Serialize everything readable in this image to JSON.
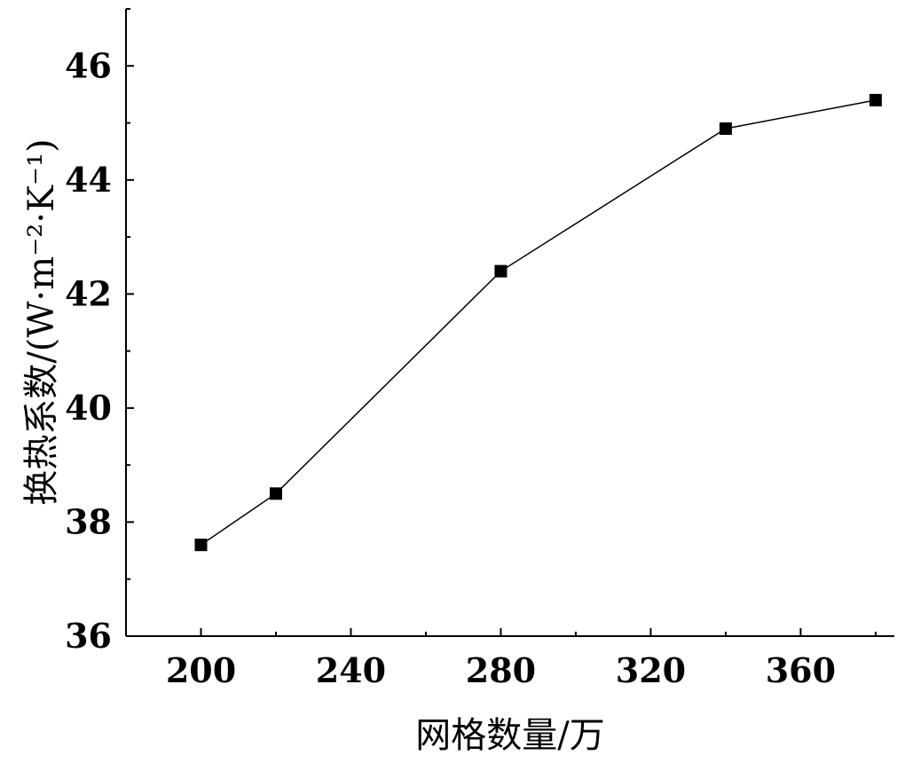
{
  "chart_data": {
    "type": "line",
    "title": "",
    "xlabel": "网格数量/万",
    "ylabel": "换热系数/(W·m⁻²·K⁻¹)",
    "xlim": [
      180,
      385
    ],
    "ylim": [
      36,
      47
    ],
    "x_ticks": [
      200,
      240,
      280,
      320,
      360
    ],
    "y_ticks": [
      36,
      38,
      40,
      42,
      44,
      46
    ],
    "grid": false,
    "legend": "none",
    "marker": "square",
    "series": [
      {
        "x": [
          200,
          220,
          280,
          340,
          380
        ],
        "y": [
          37.6,
          38.5,
          42.4,
          44.9,
          45.4
        ]
      }
    ],
    "colors": {
      "line": "#000000",
      "marker": "#000000"
    }
  }
}
